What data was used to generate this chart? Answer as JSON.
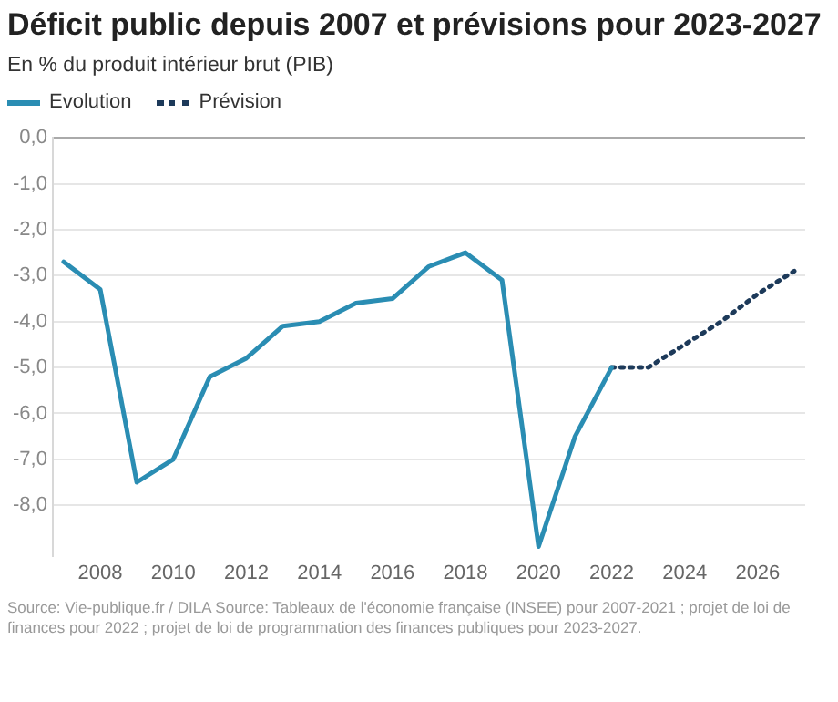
{
  "chart_data": {
    "type": "line",
    "title": "Déficit public depuis 2007 et prévisions pour 2023-2027",
    "subtitle": "En % du produit intérieur brut (PIB)",
    "series": [
      {
        "name": "Evolution",
        "color": "#2a8db3",
        "line_style": "solid",
        "x": [
          2007,
          2008,
          2009,
          2010,
          2011,
          2012,
          2013,
          2014,
          2015,
          2016,
          2017,
          2018,
          2019,
          2020,
          2021,
          2022
        ],
        "values": [
          -2.7,
          -3.3,
          -7.5,
          -7.0,
          -5.2,
          -4.8,
          -4.1,
          -4.0,
          -3.6,
          -3.5,
          -2.8,
          -2.5,
          -3.1,
          -8.9,
          -6.5,
          -5.0
        ]
      },
      {
        "name": "Prévision",
        "color": "#1d3a5a",
        "line_style": "dotted",
        "x": [
          2022,
          2023,
          2024,
          2025,
          2026,
          2027
        ],
        "values": [
          -5.0,
          -5.0,
          -4.5,
          -4.0,
          -3.4,
          -2.9
        ]
      }
    ],
    "xlim": [
      2006.7,
      2027.3
    ],
    "xticks": [
      2008,
      2010,
      2012,
      2014,
      2016,
      2018,
      2020,
      2022,
      2024,
      2026
    ],
    "ylim": [
      -9.1,
      0
    ],
    "yticks": [
      {
        "value": 0,
        "label": "0,0"
      },
      {
        "value": -1,
        "label": "-1,0"
      },
      {
        "value": -2,
        "label": "-2,0"
      },
      {
        "value": -3,
        "label": "-3,0"
      },
      {
        "value": -4,
        "label": "-4,0"
      },
      {
        "value": -5,
        "label": "-5,0"
      },
      {
        "value": -6,
        "label": "-6,0"
      },
      {
        "value": -7,
        "label": "-7,0"
      },
      {
        "value": -8,
        "label": "-8,0"
      }
    ],
    "grid": "y",
    "legend": "top left",
    "marker": "none",
    "annotations": [
      "Source: Vie-publique.fr / DILA Source: Tableaux de l'économie française (INSEE) pour 2007-2021 ; projet de loi de finances pour 2022 ; projet de loi de programmation des finances publiques pour 2023-2027."
    ]
  }
}
